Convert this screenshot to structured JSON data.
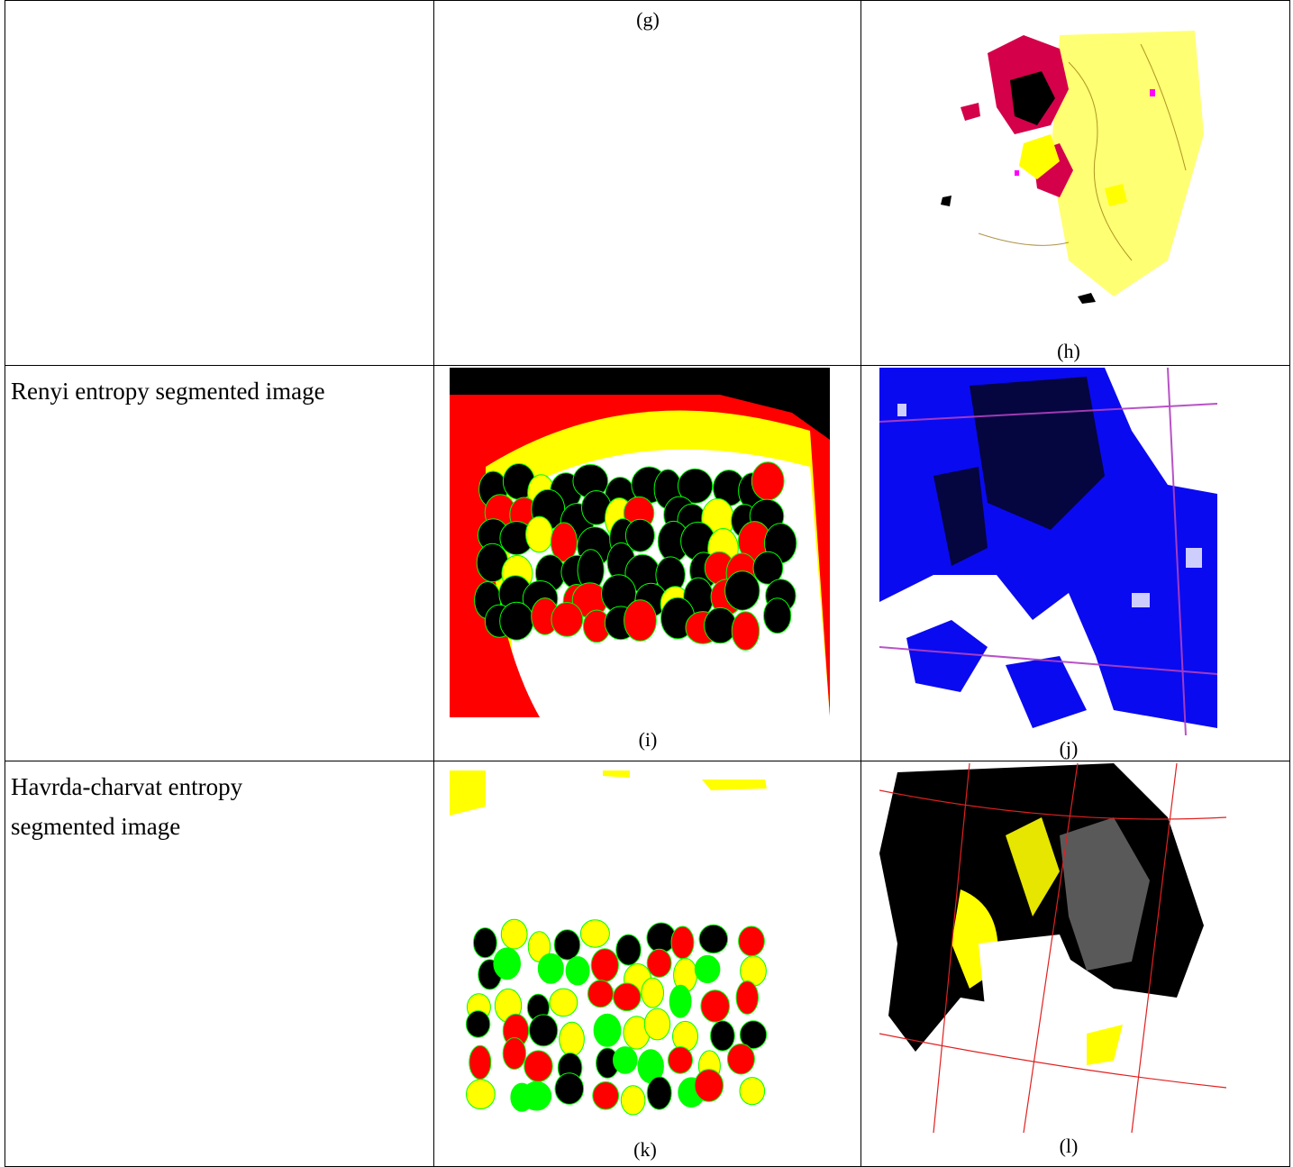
{
  "rows": [
    {
      "label": "",
      "captions": {
        "middle": "(g)",
        "right": "(h)"
      }
    },
    {
      "label": "Renyi entropy segmented image",
      "captions": {
        "middle": "(i)",
        "right": "(j)"
      }
    },
    {
      "label_lines": [
        "Havrda-charvat entropy",
        "segmented image"
      ],
      "captions": {
        "middle": "(k)",
        "right": "(l)"
      }
    }
  ],
  "palette": {
    "black": "#000000",
    "red": "#ff0000",
    "yellow": "#ffff00",
    "green": "#00ff00",
    "blue": "#0000ff",
    "magenta": "#ff00ff",
    "white": "#ffffff"
  }
}
